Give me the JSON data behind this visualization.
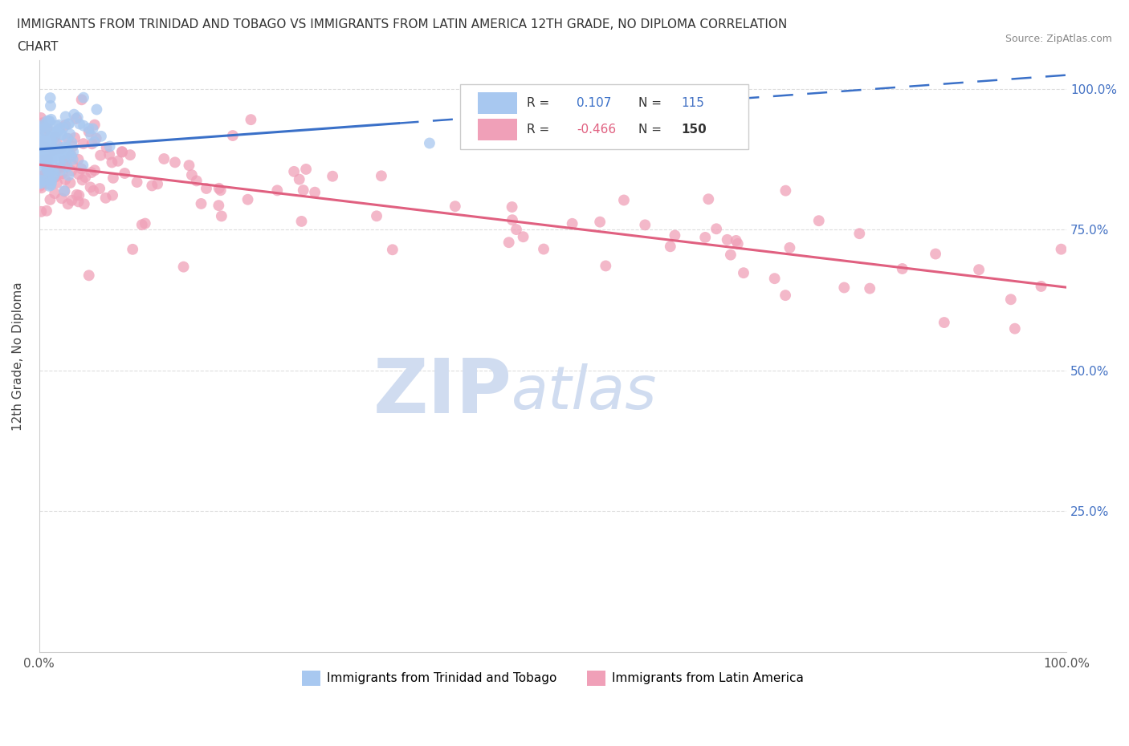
{
  "title_line1": "IMMIGRANTS FROM TRINIDAD AND TOBAGO VS IMMIGRANTS FROM LATIN AMERICA 12TH GRADE, NO DIPLOMA CORRELATION",
  "title_line2": "CHART",
  "source_text": "Source: ZipAtlas.com",
  "ylabel": "12th Grade, No Diploma",
  "color_blue": "#A8C8F0",
  "color_pink": "#F0A0B8",
  "color_blue_line": "#3A70C8",
  "color_pink_line": "#E06080",
  "watermark_ZIP": "ZIP",
  "watermark_atlas": "atlas",
  "watermark_color": "#D0DCF0",
  "background_color": "#FFFFFF",
  "grid_color": "#DDDDDD",
  "right_tick_color": "#4472C4"
}
